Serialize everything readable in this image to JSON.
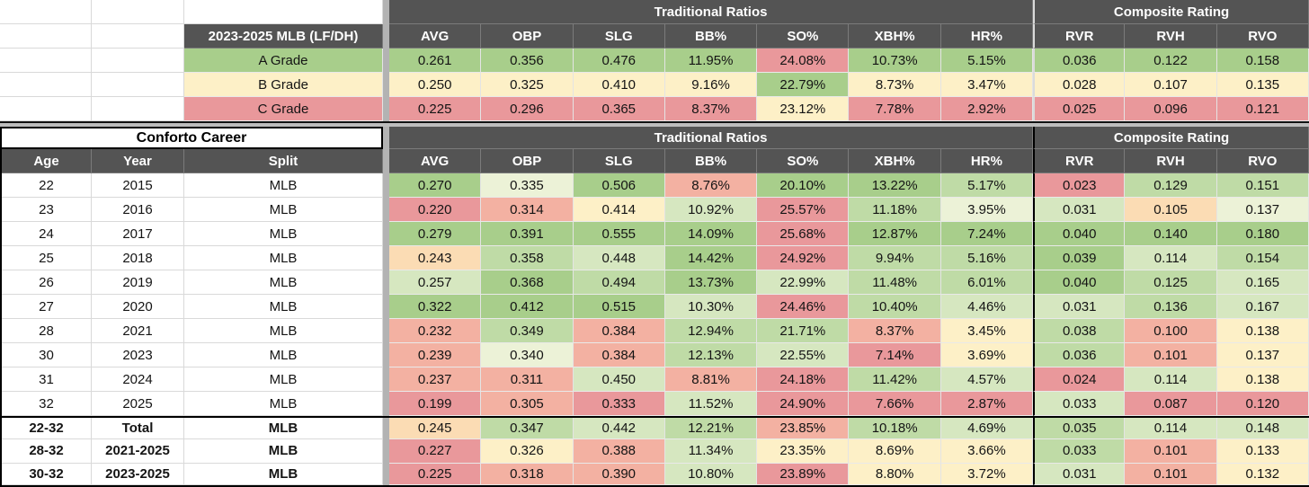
{
  "palette": {
    "g3": "#A8CE8B",
    "g2": "#BFDBA6",
    "g1": "#D6E7C0",
    "g0": "#ECF2D7",
    "y": "#FDF0C7",
    "o1": "#FBDCB4",
    "o2": "#F3B1A2",
    "r": "#E9989B",
    "header_bg": "#545454",
    "header_text": "#FFFFFF",
    "pane_divider": "#B3B3B3"
  },
  "top_table": {
    "corner_label": "2023-2025 MLB (LF/DH)",
    "group_headers": [
      "Traditional Ratios",
      "Composite Rating"
    ],
    "stat_headers": [
      "AVG",
      "OBP",
      "SLG",
      "BB%",
      "SO%",
      "XBH%",
      "HR%",
      "RVR",
      "RVH",
      "RVO"
    ],
    "rows": [
      {
        "label": "A Grade",
        "label_color": "g3",
        "cells": [
          {
            "v": "0.261",
            "c": "g3"
          },
          {
            "v": "0.356",
            "c": "g3"
          },
          {
            "v": "0.476",
            "c": "g3"
          },
          {
            "v": "11.95%",
            "c": "g3"
          },
          {
            "v": "24.08%",
            "c": "r"
          },
          {
            "v": "10.73%",
            "c": "g3"
          },
          {
            "v": "5.15%",
            "c": "g3"
          },
          {
            "v": "0.036",
            "c": "g3"
          },
          {
            "v": "0.122",
            "c": "g3"
          },
          {
            "v": "0.158",
            "c": "g3"
          }
        ]
      },
      {
        "label": "B Grade",
        "label_color": "y",
        "cells": [
          {
            "v": "0.250",
            "c": "y"
          },
          {
            "v": "0.325",
            "c": "y"
          },
          {
            "v": "0.410",
            "c": "y"
          },
          {
            "v": "9.16%",
            "c": "y"
          },
          {
            "v": "22.79%",
            "c": "g3"
          },
          {
            "v": "8.73%",
            "c": "y"
          },
          {
            "v": "3.47%",
            "c": "y"
          },
          {
            "v": "0.028",
            "c": "y"
          },
          {
            "v": "0.107",
            "c": "y"
          },
          {
            "v": "0.135",
            "c": "y"
          }
        ]
      },
      {
        "label": "C Grade",
        "label_color": "r",
        "cells": [
          {
            "v": "0.225",
            "c": "r"
          },
          {
            "v": "0.296",
            "c": "r"
          },
          {
            "v": "0.365",
            "c": "r"
          },
          {
            "v": "8.37%",
            "c": "r"
          },
          {
            "v": "23.12%",
            "c": "y"
          },
          {
            "v": "7.78%",
            "c": "r"
          },
          {
            "v": "2.92%",
            "c": "r"
          },
          {
            "v": "0.025",
            "c": "r"
          },
          {
            "v": "0.096",
            "c": "r"
          },
          {
            "v": "0.121",
            "c": "r"
          }
        ]
      }
    ]
  },
  "career_table": {
    "title": "Conforto Career",
    "left_headers": [
      "Age",
      "Year",
      "Split"
    ],
    "group_headers": [
      "Traditional Ratios",
      "Composite Rating"
    ],
    "stat_headers": [
      "AVG",
      "OBP",
      "SLG",
      "BB%",
      "SO%",
      "XBH%",
      "HR%",
      "RVR",
      "RVH",
      "RVO"
    ],
    "rows": [
      {
        "age": "22",
        "year": "2015",
        "split": "MLB",
        "bold": false,
        "cells": [
          {
            "v": "0.270",
            "c": "g3"
          },
          {
            "v": "0.335",
            "c": "g0"
          },
          {
            "v": "0.506",
            "c": "g3"
          },
          {
            "v": "8.76%",
            "c": "o2"
          },
          {
            "v": "20.10%",
            "c": "g3"
          },
          {
            "v": "13.22%",
            "c": "g3"
          },
          {
            "v": "5.17%",
            "c": "g2"
          },
          {
            "v": "0.023",
            "c": "r"
          },
          {
            "v": "0.129",
            "c": "g2"
          },
          {
            "v": "0.151",
            "c": "g2"
          }
        ]
      },
      {
        "age": "23",
        "year": "2016",
        "split": "MLB",
        "bold": false,
        "cells": [
          {
            "v": "0.220",
            "c": "r"
          },
          {
            "v": "0.314",
            "c": "o2"
          },
          {
            "v": "0.414",
            "c": "y"
          },
          {
            "v": "10.92%",
            "c": "g1"
          },
          {
            "v": "25.57%",
            "c": "r"
          },
          {
            "v": "11.18%",
            "c": "g2"
          },
          {
            "v": "3.95%",
            "c": "g0"
          },
          {
            "v": "0.031",
            "c": "g1"
          },
          {
            "v": "0.105",
            "c": "o1"
          },
          {
            "v": "0.137",
            "c": "g0"
          }
        ]
      },
      {
        "age": "24",
        "year": "2017",
        "split": "MLB",
        "bold": false,
        "cells": [
          {
            "v": "0.279",
            "c": "g3"
          },
          {
            "v": "0.391",
            "c": "g3"
          },
          {
            "v": "0.555",
            "c": "g3"
          },
          {
            "v": "14.09%",
            "c": "g3"
          },
          {
            "v": "25.68%",
            "c": "r"
          },
          {
            "v": "12.87%",
            "c": "g3"
          },
          {
            "v": "7.24%",
            "c": "g3"
          },
          {
            "v": "0.040",
            "c": "g3"
          },
          {
            "v": "0.140",
            "c": "g3"
          },
          {
            "v": "0.180",
            "c": "g3"
          }
        ]
      },
      {
        "age": "25",
        "year": "2018",
        "split": "MLB",
        "bold": false,
        "cells": [
          {
            "v": "0.243",
            "c": "o1"
          },
          {
            "v": "0.358",
            "c": "g2"
          },
          {
            "v": "0.448",
            "c": "g1"
          },
          {
            "v": "14.42%",
            "c": "g3"
          },
          {
            "v": "24.92%",
            "c": "r"
          },
          {
            "v": "9.94%",
            "c": "g2"
          },
          {
            "v": "5.16%",
            "c": "g2"
          },
          {
            "v": "0.039",
            "c": "g3"
          },
          {
            "v": "0.114",
            "c": "g1"
          },
          {
            "v": "0.154",
            "c": "g2"
          }
        ]
      },
      {
        "age": "26",
        "year": "2019",
        "split": "MLB",
        "bold": false,
        "cells": [
          {
            "v": "0.257",
            "c": "g1"
          },
          {
            "v": "0.368",
            "c": "g3"
          },
          {
            "v": "0.494",
            "c": "g2"
          },
          {
            "v": "13.73%",
            "c": "g3"
          },
          {
            "v": "22.99%",
            "c": "g1"
          },
          {
            "v": "11.48%",
            "c": "g2"
          },
          {
            "v": "6.01%",
            "c": "g2"
          },
          {
            "v": "0.040",
            "c": "g3"
          },
          {
            "v": "0.125",
            "c": "g2"
          },
          {
            "v": "0.165",
            "c": "g1"
          }
        ]
      },
      {
        "age": "27",
        "year": "2020",
        "split": "MLB",
        "bold": false,
        "cells": [
          {
            "v": "0.322",
            "c": "g3"
          },
          {
            "v": "0.412",
            "c": "g3"
          },
          {
            "v": "0.515",
            "c": "g3"
          },
          {
            "v": "10.30%",
            "c": "g1"
          },
          {
            "v": "24.46%",
            "c": "r"
          },
          {
            "v": "10.40%",
            "c": "g2"
          },
          {
            "v": "4.46%",
            "c": "g1"
          },
          {
            "v": "0.031",
            "c": "g1"
          },
          {
            "v": "0.136",
            "c": "g2"
          },
          {
            "v": "0.167",
            "c": "g1"
          }
        ]
      },
      {
        "age": "28",
        "year": "2021",
        "split": "MLB",
        "bold": false,
        "cells": [
          {
            "v": "0.232",
            "c": "o2"
          },
          {
            "v": "0.349",
            "c": "g2"
          },
          {
            "v": "0.384",
            "c": "o2"
          },
          {
            "v": "12.94%",
            "c": "g2"
          },
          {
            "v": "21.71%",
            "c": "g2"
          },
          {
            "v": "8.37%",
            "c": "o2"
          },
          {
            "v": "3.45%",
            "c": "y"
          },
          {
            "v": "0.038",
            "c": "g2"
          },
          {
            "v": "0.100",
            "c": "o2"
          },
          {
            "v": "0.138",
            "c": "y"
          }
        ]
      },
      {
        "age": "30",
        "year": "2023",
        "split": "MLB",
        "bold": false,
        "cells": [
          {
            "v": "0.239",
            "c": "o2"
          },
          {
            "v": "0.340",
            "c": "g0"
          },
          {
            "v": "0.384",
            "c": "o2"
          },
          {
            "v": "12.13%",
            "c": "g2"
          },
          {
            "v": "22.55%",
            "c": "g1"
          },
          {
            "v": "7.14%",
            "c": "r"
          },
          {
            "v": "3.69%",
            "c": "y"
          },
          {
            "v": "0.036",
            "c": "g2"
          },
          {
            "v": "0.101",
            "c": "o2"
          },
          {
            "v": "0.137",
            "c": "y"
          }
        ]
      },
      {
        "age": "31",
        "year": "2024",
        "split": "MLB",
        "bold": false,
        "cells": [
          {
            "v": "0.237",
            "c": "o2"
          },
          {
            "v": "0.311",
            "c": "o2"
          },
          {
            "v": "0.450",
            "c": "g1"
          },
          {
            "v": "8.81%",
            "c": "o2"
          },
          {
            "v": "24.18%",
            "c": "r"
          },
          {
            "v": "11.42%",
            "c": "g2"
          },
          {
            "v": "4.57%",
            "c": "g1"
          },
          {
            "v": "0.024",
            "c": "r"
          },
          {
            "v": "0.114",
            "c": "g1"
          },
          {
            "v": "0.138",
            "c": "y"
          }
        ]
      },
      {
        "age": "32",
        "year": "2025",
        "split": "MLB",
        "bold": false,
        "cells": [
          {
            "v": "0.199",
            "c": "r"
          },
          {
            "v": "0.305",
            "c": "o2"
          },
          {
            "v": "0.333",
            "c": "r"
          },
          {
            "v": "11.52%",
            "c": "g1"
          },
          {
            "v": "24.90%",
            "c": "r"
          },
          {
            "v": "7.66%",
            "c": "r"
          },
          {
            "v": "2.87%",
            "c": "r"
          },
          {
            "v": "0.033",
            "c": "g1"
          },
          {
            "v": "0.087",
            "c": "r"
          },
          {
            "v": "0.120",
            "c": "r"
          }
        ]
      },
      {
        "age": "22-32",
        "year": "Total",
        "split": "MLB",
        "bold": true,
        "cells": [
          {
            "v": "0.245",
            "c": "o1"
          },
          {
            "v": "0.347",
            "c": "g2"
          },
          {
            "v": "0.442",
            "c": "g1"
          },
          {
            "v": "12.21%",
            "c": "g2"
          },
          {
            "v": "23.85%",
            "c": "o2"
          },
          {
            "v": "10.18%",
            "c": "g2"
          },
          {
            "v": "4.69%",
            "c": "g1"
          },
          {
            "v": "0.035",
            "c": "g2"
          },
          {
            "v": "0.114",
            "c": "g1"
          },
          {
            "v": "0.148",
            "c": "g1"
          }
        ]
      },
      {
        "age": "28-32",
        "year": "2021-2025",
        "split": "MLB",
        "bold": true,
        "cells": [
          {
            "v": "0.227",
            "c": "r"
          },
          {
            "v": "0.326",
            "c": "y"
          },
          {
            "v": "0.388",
            "c": "o2"
          },
          {
            "v": "11.34%",
            "c": "g1"
          },
          {
            "v": "23.35%",
            "c": "y"
          },
          {
            "v": "8.69%",
            "c": "y"
          },
          {
            "v": "3.66%",
            "c": "y"
          },
          {
            "v": "0.033",
            "c": "g2"
          },
          {
            "v": "0.101",
            "c": "o2"
          },
          {
            "v": "0.133",
            "c": "y"
          }
        ]
      },
      {
        "age": "30-32",
        "year": "2023-2025",
        "split": "MLB",
        "bold": true,
        "cells": [
          {
            "v": "0.225",
            "c": "r"
          },
          {
            "v": "0.318",
            "c": "o2"
          },
          {
            "v": "0.390",
            "c": "o2"
          },
          {
            "v": "10.80%",
            "c": "g1"
          },
          {
            "v": "23.89%",
            "c": "r"
          },
          {
            "v": "8.80%",
            "c": "y"
          },
          {
            "v": "3.72%",
            "c": "y"
          },
          {
            "v": "0.031",
            "c": "g1"
          },
          {
            "v": "0.101",
            "c": "o2"
          },
          {
            "v": "0.132",
            "c": "y"
          }
        ]
      }
    ]
  }
}
